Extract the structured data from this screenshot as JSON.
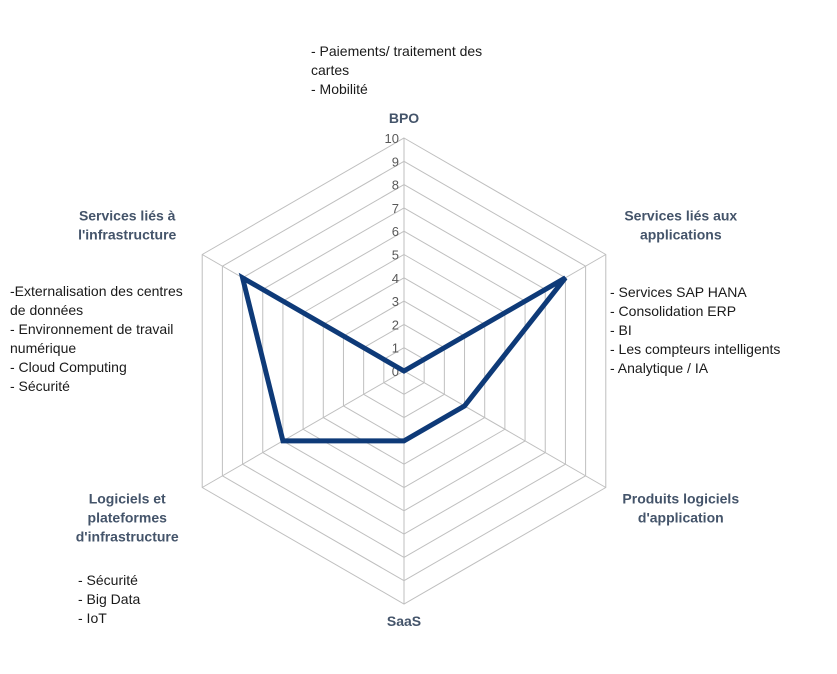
{
  "chart_data": {
    "type": "radar",
    "title": "",
    "scale": {
      "min": 0,
      "max": 10,
      "step": 1
    },
    "tick_labels": [
      "0",
      "1",
      "2",
      "3",
      "4",
      "5",
      "6",
      "7",
      "8",
      "9",
      "10"
    ],
    "categories": [
      [
        "BPO"
      ],
      [
        "Services liés aux",
        "applications"
      ],
      [
        "Produits logiciels",
        "d'application"
      ],
      [
        "SaaS"
      ],
      [
        "Logiciels et",
        "plateformes",
        "d'infrastructure"
      ],
      [
        "Services liés à",
        "l'infrastructure"
      ]
    ],
    "series": [
      {
        "values": [
          0,
          8,
          3,
          3,
          6,
          8
        ],
        "color": "#0e3a78"
      }
    ],
    "grid": true,
    "colors": {
      "grid": "#bfbfbf",
      "label": "#44546a",
      "series": "#0e3a78"
    }
  },
  "annotations": {
    "bpo": [
      "- Paiements/ traitement des",
      "cartes",
      "- Mobilité"
    ],
    "applications": [
      "- Services SAP HANA",
      "- Consolidation ERP",
      "- BI",
      "- Les compteurs intelligents",
      "- Analytique / IA"
    ],
    "infrastructure_services": [
      "-Externalisation des centres",
      "de données",
      "- Environnement de travail",
      "numérique",
      "- Cloud Computing",
      "- Sécurité"
    ],
    "infrastructure_software": [
      "- Sécurité",
      "- Big Data",
      "- IoT"
    ]
  }
}
